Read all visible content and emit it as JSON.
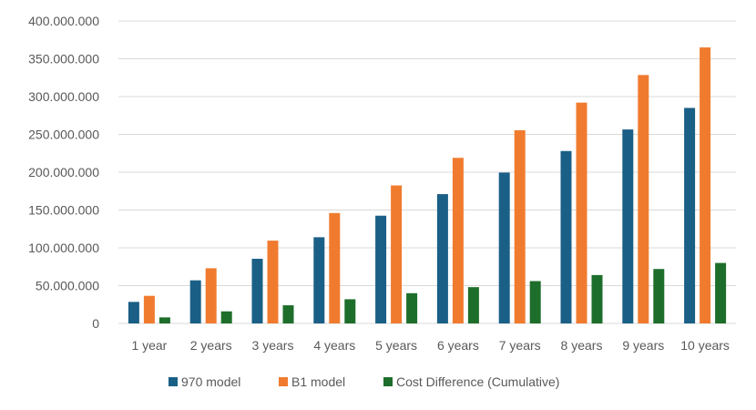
{
  "chart_data": {
    "type": "bar",
    "title": "",
    "xlabel": "",
    "ylabel": "",
    "ylim": [
      0,
      400000000
    ],
    "y_ticks": [
      "0",
      "50.000.000",
      "100.000.000",
      "150.000.000",
      "200.000.000",
      "250.000.000",
      "300.000.000",
      "350.000.000",
      "400.000.000"
    ],
    "categories": [
      "1 year",
      "2 years",
      "3 years",
      "4 years",
      "5 years",
      "6 years",
      "7 years",
      "8 years",
      "9 years",
      "10 years"
    ],
    "grid": true,
    "legend_position": "bottom",
    "series": [
      {
        "name": "970 model",
        "color": "#1a5f86",
        "values": [
          28500000,
          57000000,
          85500000,
          114000000,
          142500000,
          171000000,
          199500000,
          228000000,
          256500000,
          285000000
        ]
      },
      {
        "name": "B1 model",
        "color": "#f07b2f",
        "values": [
          36500000,
          73000000,
          109500000,
          146000000,
          182500000,
          219000000,
          255500000,
          292000000,
          328500000,
          365000000
        ]
      },
      {
        "name": "Cost Difference (Cumulative)",
        "color": "#1e6e2b",
        "values": [
          8000000,
          16000000,
          24000000,
          32000000,
          40000000,
          48000000,
          56000000,
          64000000,
          72000000,
          80000000
        ]
      }
    ]
  }
}
